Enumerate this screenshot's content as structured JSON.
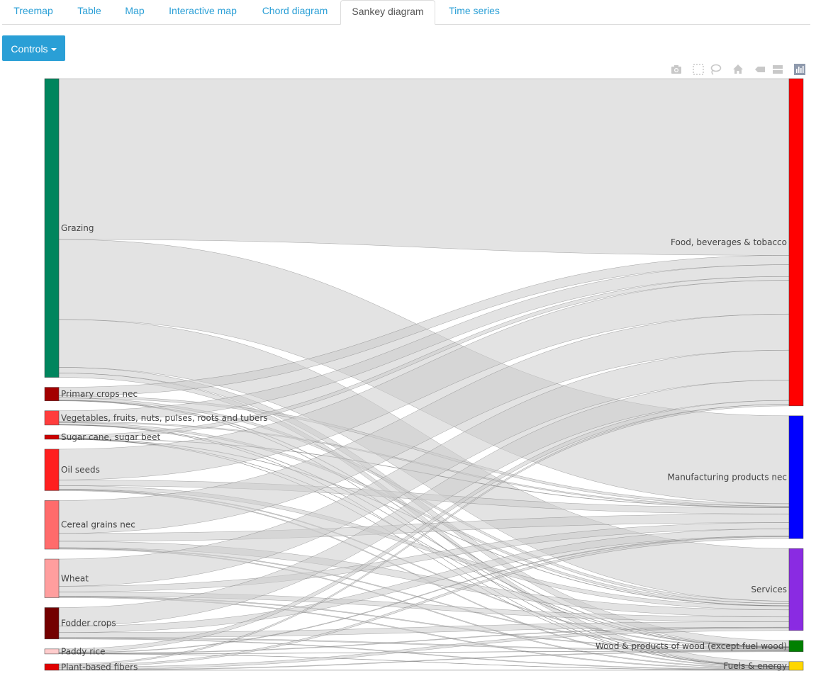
{
  "tabs": [
    {
      "label": "Treemap"
    },
    {
      "label": "Table"
    },
    {
      "label": "Map"
    },
    {
      "label": "Interactive map"
    },
    {
      "label": "Chord diagram"
    },
    {
      "label": "Sankey diagram"
    },
    {
      "label": "Time series"
    }
  ],
  "active_tab": "Sankey diagram",
  "controls": {
    "label": "Controls"
  },
  "modebar": [
    "camera-icon",
    "box-select-icon",
    "lasso-icon",
    "home-icon",
    "hover-closest-icon",
    "hover-compare-icon",
    "plotly-logo-icon"
  ],
  "chart_data": {
    "type": "sankey",
    "link_color": "#cccccc",
    "sources": [
      {
        "name": "Grazing",
        "value": 2090,
        "color": "#00855d"
      },
      {
        "name": "Primary crops nec",
        "value": 95,
        "color": "#a30000"
      },
      {
        "name": "Vegetables, fruits, nuts, pulses, roots and tubers",
        "value": 100,
        "color": "#ff3d3d"
      },
      {
        "name": "Sugar cane, sugar beet",
        "value": 30,
        "color": "#cc0000"
      },
      {
        "name": "Oil seeds",
        "value": 290,
        "color": "#ff1f1f"
      },
      {
        "name": "Cereal grains nec",
        "value": 340,
        "color": "#ff6b6b"
      },
      {
        "name": "Wheat",
        "value": 270,
        "color": "#ff9e9e"
      },
      {
        "name": "Fodder crops",
        "value": 220,
        "color": "#730000"
      },
      {
        "name": "Paddy rice",
        "value": 35,
        "color": "#ffcccc"
      },
      {
        "name": "Plant-based fibers",
        "value": 45,
        "color": "#e00000"
      }
    ],
    "targets": [
      {
        "name": "Food, beverages & tobacco",
        "value": 2084,
        "color": "#ff0000"
      },
      {
        "name": "Manufacturing products nec",
        "value": 782,
        "color": "#0000ff"
      },
      {
        "name": "Services",
        "value": 522,
        "color": "#8a2be2"
      },
      {
        "name": "Wood & products of wood (except fuel wood)",
        "value": 72,
        "color": "#008000"
      },
      {
        "name": "Fuels & energy",
        "value": 55,
        "color": "#ffd700"
      }
    ],
    "links": [
      {
        "source": "Grazing",
        "target": "Food, beverages & tobacco",
        "value": 1125
      },
      {
        "source": "Grazing",
        "target": "Manufacturing products nec",
        "value": 560
      },
      {
        "source": "Grazing",
        "target": "Services",
        "value": 335
      },
      {
        "source": "Grazing",
        "target": "Wood & products of wood (except fuel wood)",
        "value": 40
      },
      {
        "source": "Grazing",
        "target": "Fuels & energy",
        "value": 30
      },
      {
        "source": "Primary crops nec",
        "target": "Food, beverages & tobacco",
        "value": 60
      },
      {
        "source": "Primary crops nec",
        "target": "Manufacturing products nec",
        "value": 15
      },
      {
        "source": "Primary crops nec",
        "target": "Services",
        "value": 15
      },
      {
        "source": "Primary crops nec",
        "target": "Wood & products of wood (except fuel wood)",
        "value": 3
      },
      {
        "source": "Primary crops nec",
        "target": "Fuels & energy",
        "value": 2
      },
      {
        "source": "Vegetables, fruits, nuts, pulses, roots and tubers",
        "target": "Food, beverages & tobacco",
        "value": 75
      },
      {
        "source": "Vegetables, fruits, nuts, pulses, roots and tubers",
        "target": "Manufacturing products nec",
        "value": 8
      },
      {
        "source": "Vegetables, fruits, nuts, pulses, roots and tubers",
        "target": "Services",
        "value": 14
      },
      {
        "source": "Vegetables, fruits, nuts, pulses, roots and tubers",
        "target": "Wood & products of wood (except fuel wood)",
        "value": 2
      },
      {
        "source": "Vegetables, fruits, nuts, pulses, roots and tubers",
        "target": "Fuels & energy",
        "value": 1
      },
      {
        "source": "Sugar cane, sugar beet",
        "target": "Food, beverages & tobacco",
        "value": 24
      },
      {
        "source": "Sugar cane, sugar beet",
        "target": "Manufacturing products nec",
        "value": 2
      },
      {
        "source": "Sugar cane, sugar beet",
        "target": "Services",
        "value": 2
      },
      {
        "source": "Sugar cane, sugar beet",
        "target": "Wood & products of wood (except fuel wood)",
        "value": 1
      },
      {
        "source": "Sugar cane, sugar beet",
        "target": "Fuels & energy",
        "value": 1
      },
      {
        "source": "Oil seeds",
        "target": "Food, beverages & tobacco",
        "value": 215
      },
      {
        "source": "Oil seeds",
        "target": "Manufacturing products nec",
        "value": 40
      },
      {
        "source": "Oil seeds",
        "target": "Services",
        "value": 25
      },
      {
        "source": "Oil seeds",
        "target": "Wood & products of wood (except fuel wood)",
        "value": 5
      },
      {
        "source": "Oil seeds",
        "target": "Fuels & energy",
        "value": 5
      },
      {
        "source": "Cereal grains nec",
        "target": "Food, beverages & tobacco",
        "value": 230
      },
      {
        "source": "Cereal grains nec",
        "target": "Manufacturing products nec",
        "value": 55
      },
      {
        "source": "Cereal grains nec",
        "target": "Services",
        "value": 45
      },
      {
        "source": "Cereal grains nec",
        "target": "Wood & products of wood (except fuel wood)",
        "value": 5
      },
      {
        "source": "Cereal grains nec",
        "target": "Fuels & energy",
        "value": 5
      },
      {
        "source": "Wheat",
        "target": "Food, beverages & tobacco",
        "value": 190
      },
      {
        "source": "Wheat",
        "target": "Manufacturing products nec",
        "value": 40
      },
      {
        "source": "Wheat",
        "target": "Services",
        "value": 30
      },
      {
        "source": "Wheat",
        "target": "Wood & products of wood (except fuel wood)",
        "value": 5
      },
      {
        "source": "Wheat",
        "target": "Fuels & energy",
        "value": 5
      },
      {
        "source": "Fodder crops",
        "target": "Food, beverages & tobacco",
        "value": 130
      },
      {
        "source": "Fodder crops",
        "target": "Manufacturing products nec",
        "value": 45
      },
      {
        "source": "Fodder crops",
        "target": "Services",
        "value": 35
      },
      {
        "source": "Fodder crops",
        "target": "Wood & products of wood (except fuel wood)",
        "value": 6
      },
      {
        "source": "Fodder crops",
        "target": "Fuels & energy",
        "value": 4
      },
      {
        "source": "Paddy rice",
        "target": "Food, beverages & tobacco",
        "value": 25
      },
      {
        "source": "Paddy rice",
        "target": "Manufacturing products nec",
        "value": 4
      },
      {
        "source": "Paddy rice",
        "target": "Services",
        "value": 4
      },
      {
        "source": "Paddy rice",
        "target": "Wood & products of wood (except fuel wood)",
        "value": 1
      },
      {
        "source": "Paddy rice",
        "target": "Fuels & energy",
        "value": 1
      },
      {
        "source": "Plant-based fibers",
        "target": "Food, beverages & tobacco",
        "value": 10
      },
      {
        "source": "Plant-based fibers",
        "target": "Manufacturing products nec",
        "value": 13
      },
      {
        "source": "Plant-based fibers",
        "target": "Services",
        "value": 17
      },
      {
        "source": "Plant-based fibers",
        "target": "Wood & products of wood (except fuel wood)",
        "value": 4
      },
      {
        "source": "Plant-based fibers",
        "target": "Fuels & energy",
        "value": 1
      }
    ]
  }
}
